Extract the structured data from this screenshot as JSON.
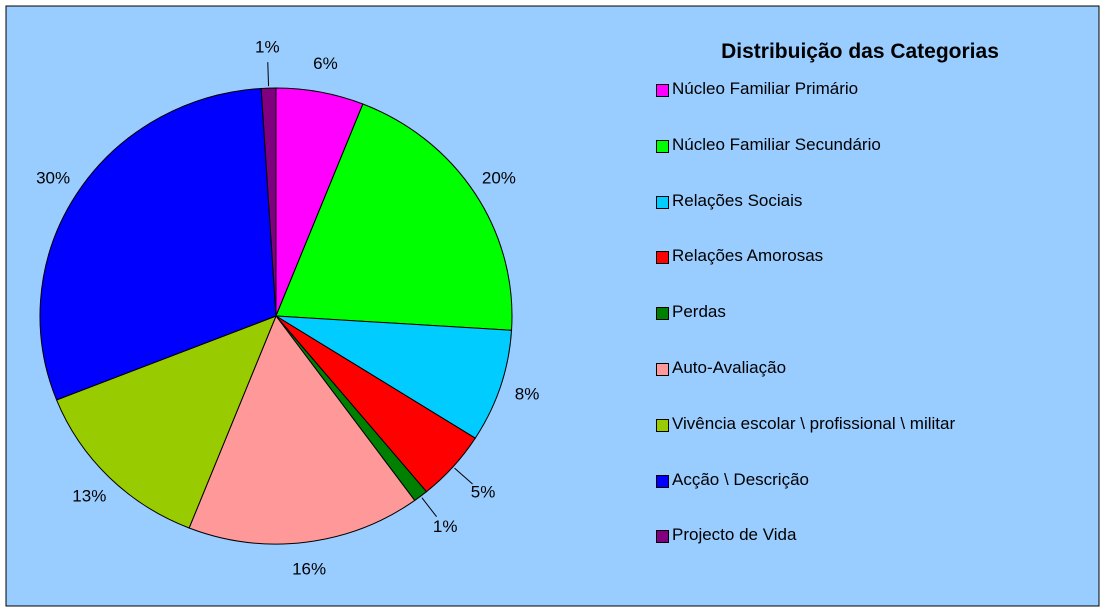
{
  "chart_data": {
    "type": "pie",
    "title": "Distribuição das Categorias",
    "categories": [
      "Núcleo Familiar Primário",
      "Núcleo Familiar Secundário",
      "Relações Sociais",
      "Relações Amorosas",
      "Perdas",
      "Auto-Avaliação",
      "Vivência escolar \\ profissional \\ militar",
      "Acção \\ Descrição",
      "Projecto de Vida"
    ],
    "values": [
      6,
      20,
      8,
      5,
      1,
      16,
      13,
      30,
      1
    ],
    "value_labels": [
      "6%",
      "20%",
      "8%",
      "5%",
      "1%",
      "16%",
      "13%",
      "30%",
      "1%"
    ],
    "colors": [
      "#ff00ff",
      "#00ff00",
      "#00ccff",
      "#ff0000",
      "#008000",
      "#ff9999",
      "#99cc00",
      "#0000ff",
      "#800080"
    ],
    "legend": "right"
  }
}
